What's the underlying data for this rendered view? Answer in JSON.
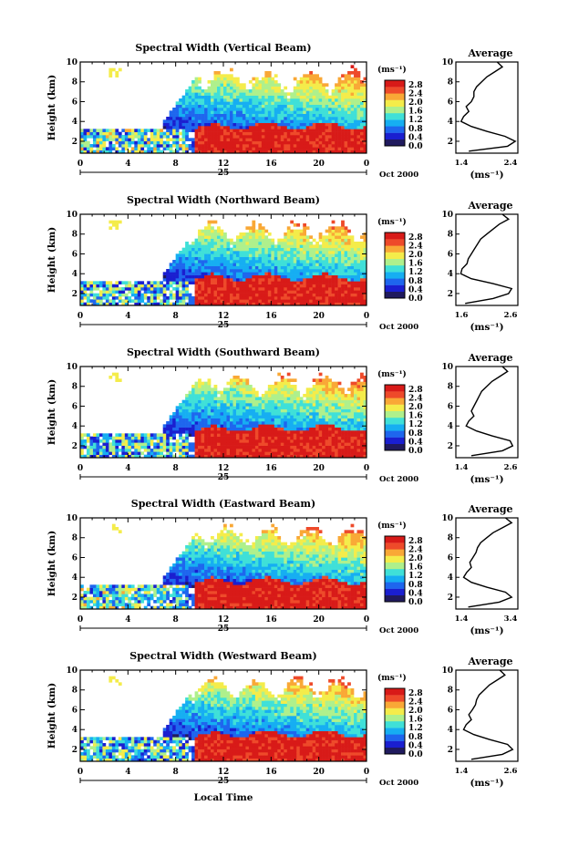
{
  "x_axis_label": "Local Time",
  "colorbar": {
    "unit": "(ms⁻¹)",
    "ticks": [
      "0.0",
      "0.4",
      "0.8",
      "1.2",
      "1.6",
      "2.0",
      "2.4",
      "2.8"
    ],
    "palette": [
      "#201a5e",
      "#1a1fd0",
      "#1e66ee",
      "#16aef2",
      "#3fe0d8",
      "#aef08c",
      "#f4ec4a",
      "#f9a836",
      "#ee4a2a",
      "#d81a18"
    ]
  },
  "date": {
    "day_label": "25",
    "month_year_label": "Oct 2000"
  },
  "average_title": "Average",
  "average_unit": "(ms⁻¹)",
  "chart_data": [
    {
      "type": "heatmap",
      "title": "Spectral Width (Vertical Beam)",
      "ylabel": "Height (km)",
      "xlabel": "",
      "x_ticks": [
        "0",
        "4",
        "8",
        "12",
        "16",
        "20",
        "0"
      ],
      "y_ticks": [
        "2",
        "4",
        "6",
        "8",
        "10"
      ],
      "xlim": [
        0,
        24
      ],
      "ylim": [
        0.8,
        10
      ],
      "clim": [
        0,
        3.0
      ],
      "layers": [
        {
          "region": "boundary layer",
          "t_start": 9.5,
          "t_end": 24,
          "h_top": 3.6,
          "width": 2.8
        },
        {
          "region": "mid troposphere",
          "t_start": 7,
          "t_end": 24,
          "h_top": 8.5,
          "width": 1.4
        },
        {
          "region": "nocturnal layer",
          "t_start": 0,
          "t_end": 9,
          "h_top": 3.3,
          "width": 1.2
        }
      ],
      "avg_profile": {
        "xlim": [
          1.4,
          2.6
        ],
        "x_ticks": [
          "1.4",
          "2.4"
        ],
        "y_ticks": [
          "2",
          "4",
          "6",
          "8",
          "10"
        ],
        "height": [
          1.0,
          1.5,
          2.0,
          2.5,
          3.0,
          3.5,
          4.0,
          4.5,
          5.0,
          5.5,
          6.0,
          6.5,
          7.0,
          7.5,
          8.0,
          8.5,
          9.0,
          9.5,
          10.0
        ],
        "width": [
          1.65,
          2.4,
          2.55,
          2.35,
          2.0,
          1.7,
          1.5,
          1.55,
          1.65,
          1.6,
          1.7,
          1.75,
          1.75,
          1.8,
          1.9,
          2.0,
          2.15,
          2.3,
          2.2
        ]
      }
    },
    {
      "type": "heatmap",
      "title": "Spectral Width (Northward Beam)",
      "ylabel": "Height (km)",
      "xlabel": "",
      "x_ticks": [
        "0",
        "4",
        "8",
        "12",
        "16",
        "20",
        "0"
      ],
      "y_ticks": [
        "2",
        "4",
        "6",
        "8",
        "10"
      ],
      "xlim": [
        0,
        24
      ],
      "ylim": [
        0.8,
        10
      ],
      "clim": [
        0,
        3.0
      ],
      "layers": [
        {
          "region": "boundary layer",
          "t_start": 9.5,
          "t_end": 24,
          "h_top": 3.7,
          "width": 2.8
        },
        {
          "region": "mid troposphere",
          "t_start": 7,
          "t_end": 24,
          "h_top": 8.5,
          "width": 1.4
        },
        {
          "region": "nocturnal layer",
          "t_start": 0,
          "t_end": 9,
          "h_top": 3.2,
          "width": 1.1
        }
      ],
      "avg_profile": {
        "xlim": [
          1.6,
          2.6
        ],
        "x_ticks": [
          "1.6",
          "2.6"
        ],
        "y_ticks": [
          "2",
          "4",
          "6",
          "8",
          "10"
        ],
        "height": [
          1.0,
          1.5,
          2.0,
          2.5,
          3.0,
          3.5,
          4.0,
          4.5,
          5.0,
          5.5,
          6.0,
          6.5,
          7.0,
          7.5,
          8.0,
          8.5,
          9.0,
          9.5,
          10.0
        ],
        "width": [
          1.75,
          2.2,
          2.45,
          2.5,
          2.2,
          1.85,
          1.68,
          1.7,
          1.78,
          1.8,
          1.85,
          1.9,
          1.95,
          2.0,
          2.1,
          2.2,
          2.3,
          2.45,
          2.35
        ]
      }
    },
    {
      "type": "heatmap",
      "title": "Spectral Width (Southward Beam)",
      "ylabel": "Height (km)",
      "xlabel": "",
      "x_ticks": [
        "0",
        "4",
        "8",
        "12",
        "16",
        "20",
        "0"
      ],
      "y_ticks": [
        "2",
        "4",
        "6",
        "8",
        "10"
      ],
      "xlim": [
        0,
        24
      ],
      "ylim": [
        0.8,
        10
      ],
      "clim": [
        0,
        3.0
      ],
      "layers": [
        {
          "region": "boundary layer",
          "t_start": 9.5,
          "t_end": 24,
          "h_top": 3.8,
          "width": 2.8
        },
        {
          "region": "mid troposphere",
          "t_start": 7,
          "t_end": 24,
          "h_top": 8.5,
          "width": 1.4
        },
        {
          "region": "nocturnal layer",
          "t_start": 0,
          "t_end": 9,
          "h_top": 3.2,
          "width": 1.1
        }
      ],
      "avg_profile": {
        "xlim": [
          1.4,
          2.6
        ],
        "x_ticks": [
          "1.4",
          "2.6"
        ],
        "y_ticks": [
          "2",
          "4",
          "6",
          "8",
          "10"
        ],
        "height": [
          1.0,
          1.5,
          2.0,
          2.5,
          3.0,
          3.5,
          4.0,
          4.5,
          5.0,
          5.5,
          6.0,
          6.5,
          7.0,
          7.5,
          8.0,
          8.5,
          9.0,
          9.5,
          10.0
        ],
        "width": [
          1.7,
          2.3,
          2.5,
          2.45,
          2.1,
          1.8,
          1.6,
          1.65,
          1.75,
          1.7,
          1.75,
          1.8,
          1.85,
          1.9,
          2.0,
          2.1,
          2.25,
          2.4,
          2.3
        ]
      }
    },
    {
      "type": "heatmap",
      "title": "Spectral Width (Eastward Beam)",
      "ylabel": "Height (km)",
      "xlabel": "",
      "x_ticks": [
        "0",
        "4",
        "8",
        "12",
        "16",
        "20",
        "0"
      ],
      "y_ticks": [
        "2",
        "4",
        "6",
        "8",
        "10"
      ],
      "xlim": [
        0,
        24
      ],
      "ylim": [
        0.8,
        10
      ],
      "clim": [
        0,
        3.0
      ],
      "layers": [
        {
          "region": "boundary layer",
          "t_start": 9.5,
          "t_end": 24,
          "h_top": 3.7,
          "width": 2.8
        },
        {
          "region": "mid troposphere",
          "t_start": 7,
          "t_end": 24,
          "h_top": 8.5,
          "width": 1.4
        },
        {
          "region": "nocturnal layer",
          "t_start": 0,
          "t_end": 9,
          "h_top": 3.3,
          "width": 1.2
        }
      ],
      "avg_profile": {
        "xlim": [
          1.4,
          3.4
        ],
        "x_ticks": [
          "1.4",
          "3.4"
        ],
        "y_ticks": [
          "2",
          "4",
          "6",
          "8",
          "10"
        ],
        "height": [
          1.0,
          1.5,
          2.0,
          2.5,
          3.0,
          3.5,
          4.0,
          4.5,
          5.0,
          5.5,
          6.0,
          6.5,
          7.0,
          7.5,
          8.0,
          8.5,
          9.0,
          9.5,
          10.0
        ],
        "width": [
          1.8,
          2.8,
          3.2,
          3.0,
          2.4,
          1.9,
          1.65,
          1.75,
          1.9,
          1.85,
          1.95,
          2.05,
          2.1,
          2.2,
          2.4,
          2.6,
          2.9,
          3.2,
          3.0
        ]
      }
    },
    {
      "type": "heatmap",
      "title": "Spectral Width (Westward Beam)",
      "ylabel": "Height (km)",
      "xlabel": "Local Time",
      "x_ticks": [
        "0",
        "4",
        "8",
        "12",
        "16",
        "20",
        "0"
      ],
      "y_ticks": [
        "2",
        "4",
        "6",
        "8",
        "10"
      ],
      "xlim": [
        0,
        24
      ],
      "ylim": [
        0.8,
        10
      ],
      "clim": [
        0,
        3.0
      ],
      "layers": [
        {
          "region": "boundary layer",
          "t_start": 9.5,
          "t_end": 24,
          "h_top": 3.6,
          "width": 2.8
        },
        {
          "region": "mid troposphere",
          "t_start": 7,
          "t_end": 24,
          "h_top": 8.5,
          "width": 1.4
        },
        {
          "region": "nocturnal layer",
          "t_start": 0,
          "t_end": 9,
          "h_top": 3.2,
          "width": 1.1
        }
      ],
      "avg_profile": {
        "xlim": [
          1.4,
          2.6
        ],
        "x_ticks": [
          "1.4",
          "2.6"
        ],
        "y_ticks": [
          "2",
          "4",
          "6",
          "8",
          "10"
        ],
        "height": [
          1.0,
          1.5,
          2.0,
          2.5,
          3.0,
          3.5,
          4.0,
          4.5,
          5.0,
          5.5,
          6.0,
          6.5,
          7.0,
          7.5,
          8.0,
          8.5,
          9.0,
          9.5,
          10.0
        ],
        "width": [
          1.7,
          2.3,
          2.5,
          2.4,
          2.05,
          1.75,
          1.55,
          1.6,
          1.7,
          1.65,
          1.72,
          1.78,
          1.8,
          1.85,
          1.95,
          2.05,
          2.2,
          2.35,
          2.25
        ]
      }
    }
  ]
}
